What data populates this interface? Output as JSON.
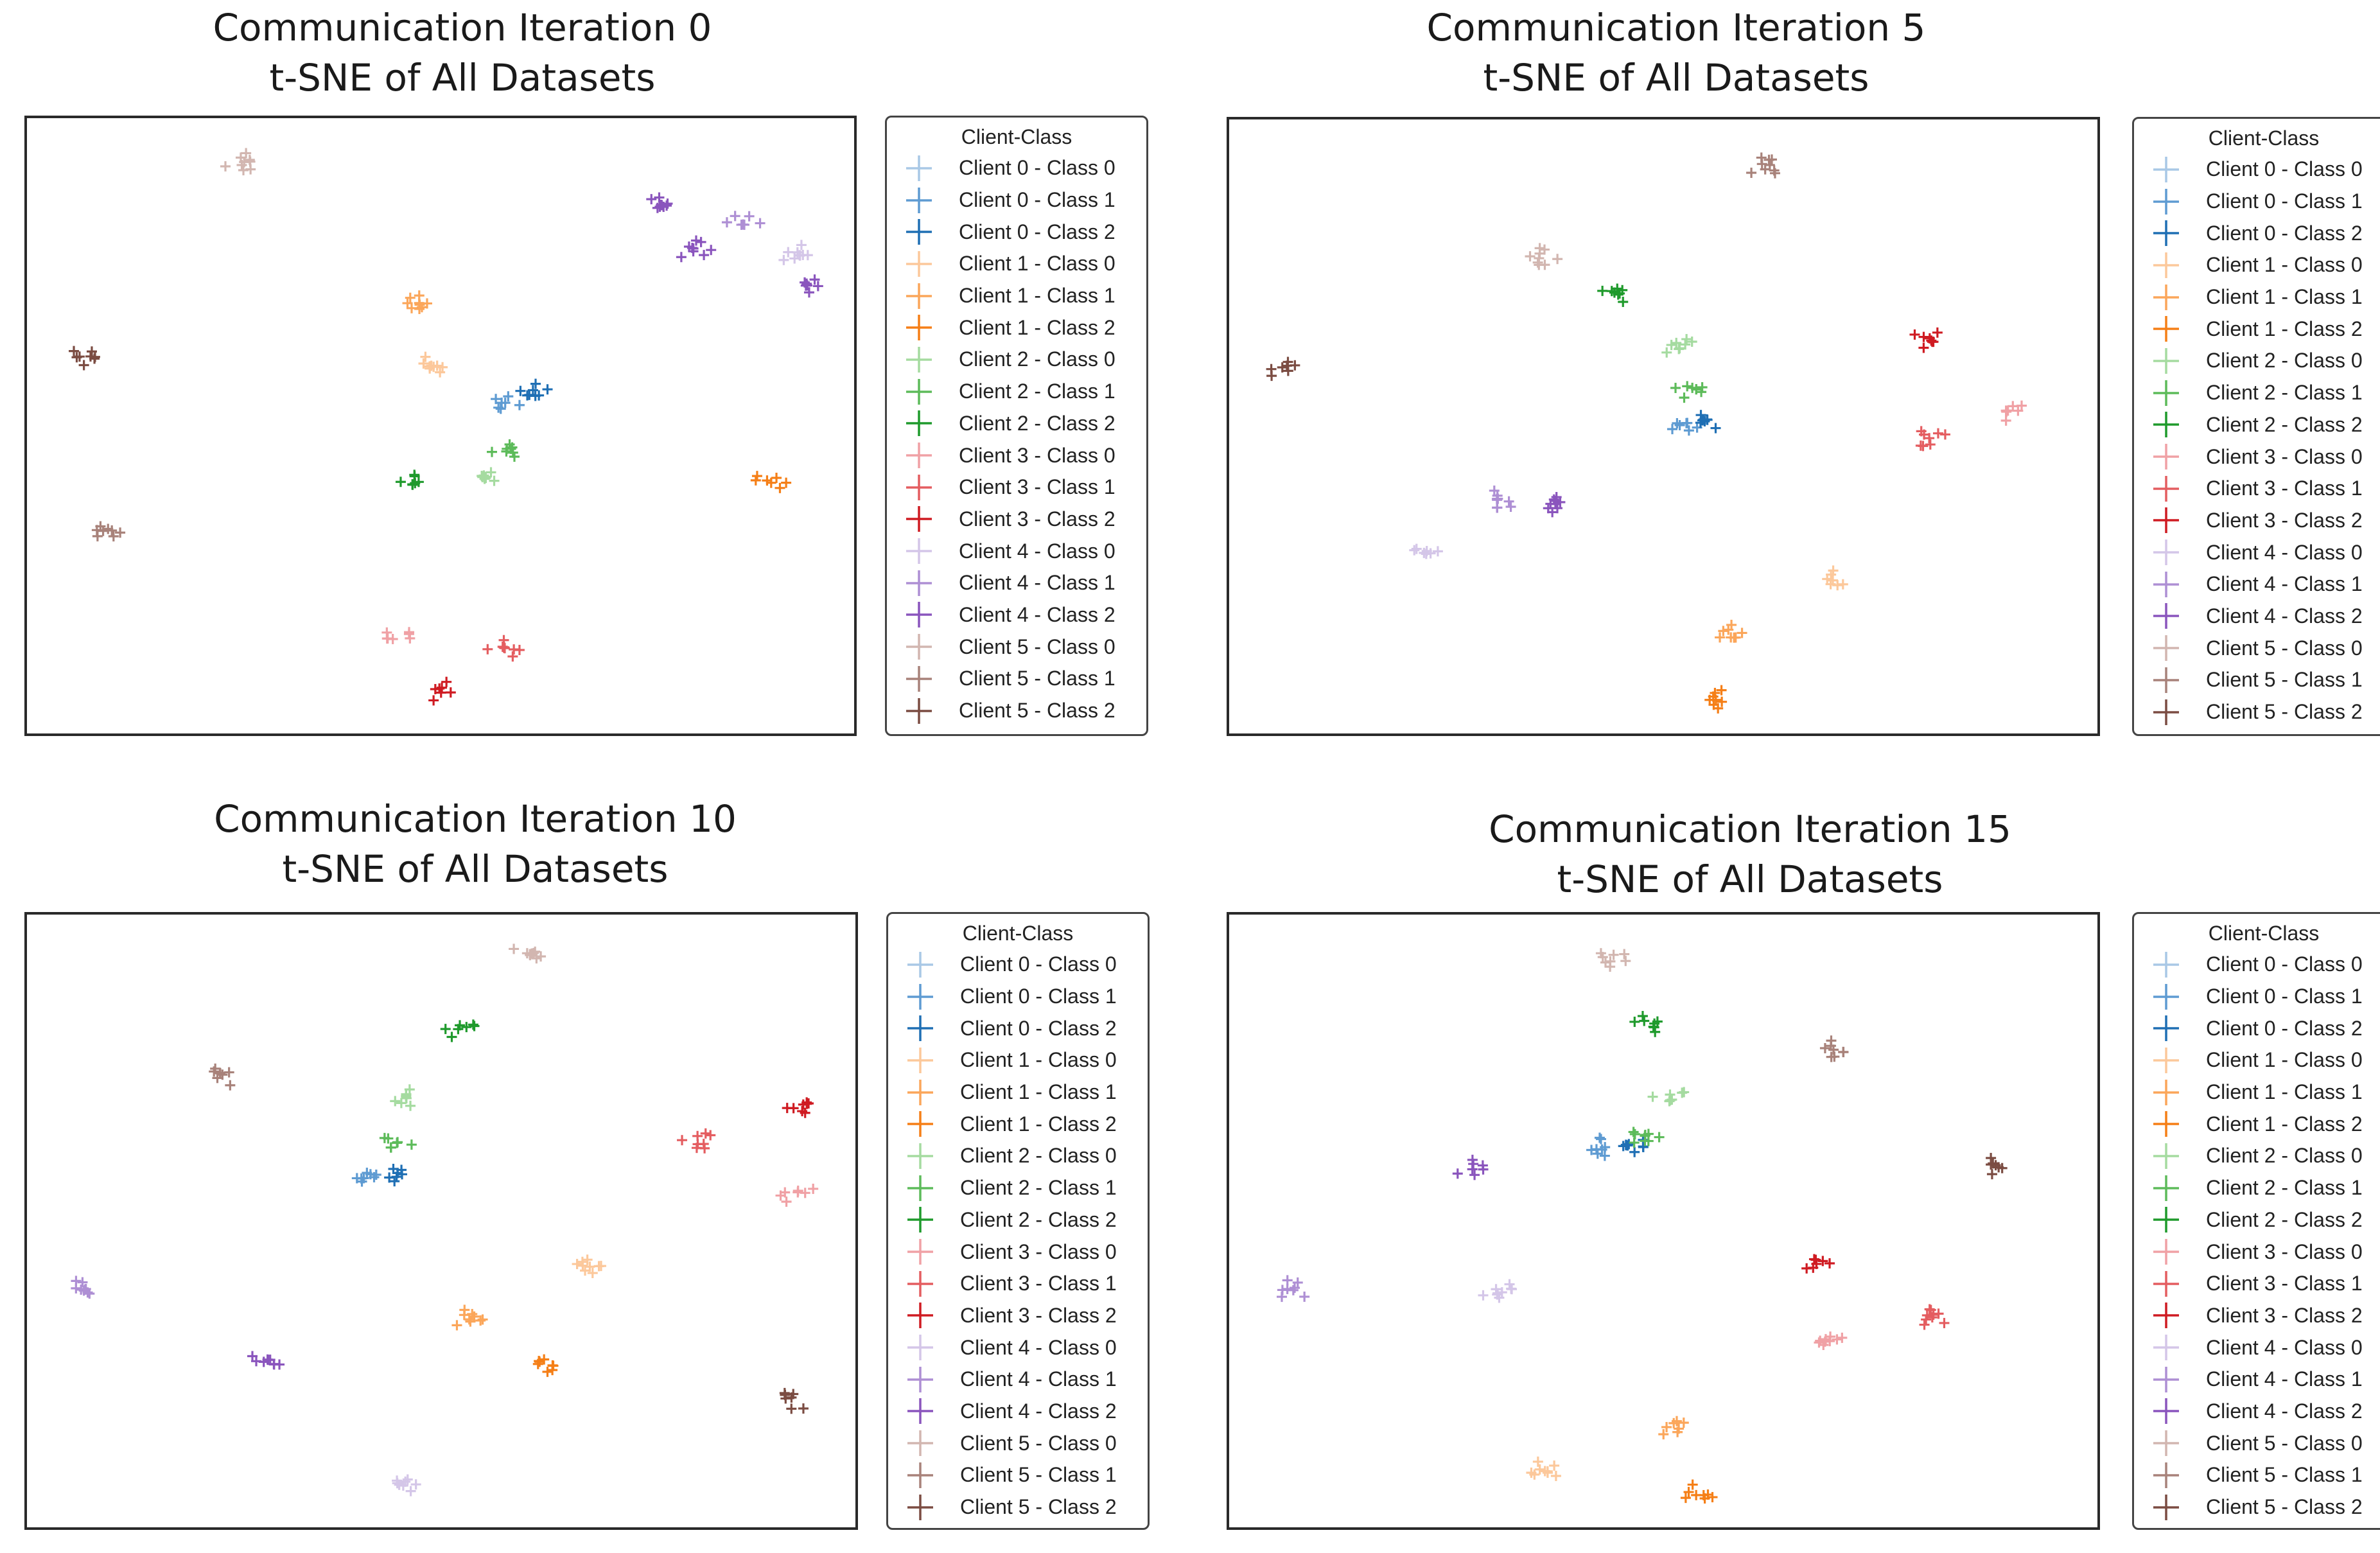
{
  "legend": {
    "title": "Client-Class",
    "items": [
      {
        "label": "Client 0 - Class 0",
        "color": "#a9c8e6"
      },
      {
        "label": "Client 0 - Class 1",
        "color": "#5e9bd2"
      },
      {
        "label": "Client 0 - Class 2",
        "color": "#1f6fb4"
      },
      {
        "label": "Client 1 - Class 0",
        "color": "#fcc89b"
      },
      {
        "label": "Client 1 - Class 1",
        "color": "#fba65a"
      },
      {
        "label": "Client 1 - Class 2",
        "color": "#f57f17"
      },
      {
        "label": "Client 2 - Class 0",
        "color": "#a5dba0"
      },
      {
        "label": "Client 2 - Class 1",
        "color": "#5dbb5a"
      },
      {
        "label": "Client 2 - Class 2",
        "color": "#1f9a2c"
      },
      {
        "label": "Client 3 - Class 0",
        "color": "#f0a1a5"
      },
      {
        "label": "Client 3 - Class 1",
        "color": "#e45d60"
      },
      {
        "label": "Client 3 - Class 2",
        "color": "#cf1b22"
      },
      {
        "label": "Client 4 - Class 0",
        "color": "#d4c6e8"
      },
      {
        "label": "Client 4 - Class 1",
        "color": "#ae8fd4"
      },
      {
        "label": "Client 4 - Class 2",
        "color": "#8a55bd"
      },
      {
        "label": "Client 5 - Class 0",
        "color": "#d2b6b0"
      },
      {
        "label": "Client 5 - Class 1",
        "color": "#a8827a"
      },
      {
        "label": "Client 5 - Class 2",
        "color": "#7b4c42"
      }
    ]
  },
  "chart_data": [
    {
      "type": "scatter",
      "title": "Communication Iteration 0\nt-SNE of All Datasets",
      "title_lines": [
        "Communication Iteration 0",
        "t-SNE of All Datasets"
      ],
      "xlim": [
        0,
        100
      ],
      "ylim": [
        0,
        100
      ],
      "axes_ticks": "none",
      "legend": "right",
      "series": [
        {
          "name": "Client 0 - Class 1",
          "centers": [
            [
              57.5,
              54.5
            ]
          ]
        },
        {
          "name": "Client 0 - Class 2",
          "centers": [
            [
              61,
              56.5
            ]
          ]
        },
        {
          "name": "Client 1 - Class 0",
          "centers": [
            [
              48.5,
              60.5
            ]
          ]
        },
        {
          "name": "Client 1 - Class 1",
          "centers": [
            [
              47,
              70.5
            ]
          ]
        },
        {
          "name": "Client 1 - Class 2",
          "centers": [
            [
              90,
              41
            ]
          ]
        },
        {
          "name": "Client 2 - Class 0",
          "centers": [
            [
              55,
              42
            ]
          ]
        },
        {
          "name": "Client 2 - Class 1",
          "centers": [
            [
              57.5,
              46.5
            ]
          ]
        },
        {
          "name": "Client 2 - Class 2",
          "centers": [
            [
              46.5,
              41
            ]
          ]
        },
        {
          "name": "Client 3 - Class 0",
          "centers": [
            [
              44,
              15.5
            ]
          ]
        },
        {
          "name": "Client 3 - Class 1",
          "centers": [
            [
              57.5,
              14
            ]
          ]
        },
        {
          "name": "Client 3 - Class 2",
          "centers": [
            [
              49.5,
              7
            ]
          ]
        },
        {
          "name": "Client 4 - Class 0",
          "centers": [
            [
              93.5,
              78.5
            ]
          ]
        },
        {
          "name": "Client 4 - Class 1",
          "centers": [
            [
              86.5,
              83.5
            ]
          ]
        },
        {
          "name": "Client 4 - Class 2",
          "centers": [
            [
              77,
              86.5
            ],
            [
              80.5,
              79.5
            ],
            [
              94.5,
              73.5
            ]
          ]
        },
        {
          "name": "Client 5 - Class 0",
          "centers": [
            [
              25.5,
              93.5
            ]
          ]
        },
        {
          "name": "Client 5 - Class 1",
          "centers": [
            [
              8.5,
              33
            ]
          ]
        },
        {
          "name": "Client 5 - Class 2",
          "centers": [
            [
              6.5,
              61.5
            ]
          ]
        }
      ]
    },
    {
      "type": "scatter",
      "title": "Communication Iteration 5\nt-SNE of All Datasets",
      "title_lines": [
        "Communication Iteration 5",
        "t-SNE of All Datasets"
      ],
      "xlim": [
        0,
        100
      ],
      "ylim": [
        0,
        100
      ],
      "axes_ticks": "none",
      "legend": "right",
      "series": [
        {
          "name": "Client 0 - Class 1",
          "centers": [
            [
              52.5,
              51
            ]
          ]
        },
        {
          "name": "Client 0 - Class 2",
          "centers": [
            [
              54.5,
              51.5
            ]
          ]
        },
        {
          "name": "Client 1 - Class 0",
          "centers": [
            [
              69.5,
              25
            ]
          ]
        },
        {
          "name": "Client 1 - Class 1",
          "centers": [
            [
              57.5,
              16.5
            ]
          ]
        },
        {
          "name": "Client 1 - Class 2",
          "centers": [
            [
              56,
              5.5
            ]
          ]
        },
        {
          "name": "Client 2 - Class 0",
          "centers": [
            [
              51.5,
              63.5
            ]
          ]
        },
        {
          "name": "Client 2 - Class 1",
          "centers": [
            [
              52.5,
              57
            ]
          ]
        },
        {
          "name": "Client 2 - Class 2",
          "centers": [
            [
              44,
              72.5
            ]
          ]
        },
        {
          "name": "Client 3 - Class 0",
          "centers": [
            [
              89.5,
              53
            ]
          ]
        },
        {
          "name": "Client 3 - Class 1",
          "centers": [
            [
              80.5,
              48.5
            ]
          ]
        },
        {
          "name": "Client 3 - Class 2",
          "centers": [
            [
              80.5,
              64.5
            ]
          ]
        },
        {
          "name": "Client 4 - Class 0",
          "centers": [
            [
              22,
              29.5
            ]
          ]
        },
        {
          "name": "Client 4 - Class 1",
          "centers": [
            [
              30.5,
              38.5
            ]
          ]
        },
        {
          "name": "Client 4 - Class 2",
          "centers": [
            [
              37,
              38
            ]
          ]
        },
        {
          "name": "Client 5 - Class 0",
          "centers": [
            [
              35.5,
              78.5
            ]
          ]
        },
        {
          "name": "Client 5 - Class 1",
          "centers": [
            [
              61,
              93
            ]
          ]
        },
        {
          "name": "Client 5 - Class 2",
          "centers": [
            [
              6,
              59.5
            ]
          ]
        }
      ]
    },
    {
      "type": "scatter",
      "title": "Communication Iteration 10\nt-SNE of All Datasets",
      "title_lines": [
        "Communication Iteration 10",
        "t-SNE of All Datasets"
      ],
      "xlim": [
        0,
        100
      ],
      "ylim": [
        0,
        100
      ],
      "axes_ticks": "none",
      "legend": "right",
      "series": [
        {
          "name": "Client 0 - Class 1",
          "centers": [
            [
              41.5,
              58
            ]
          ]
        },
        {
          "name": "Client 0 - Class 2",
          "centers": [
            [
              44.5,
              58
            ]
          ]
        },
        {
          "name": "Client 1 - Class 0",
          "centers": [
            [
              67,
              43
            ]
          ]
        },
        {
          "name": "Client 1 - Class 1",
          "centers": [
            [
              53,
              34.5
            ]
          ]
        },
        {
          "name": "Client 1 - Class 2",
          "centers": [
            [
              63,
              26.5
            ]
          ]
        },
        {
          "name": "Client 2 - Class 0",
          "centers": [
            [
              45.5,
              71
            ]
          ]
        },
        {
          "name": "Client 2 - Class 1",
          "centers": [
            [
              44,
              63.5
            ]
          ]
        },
        {
          "name": "Client 2 - Class 2",
          "centers": [
            [
              52,
              82.5
            ]
          ]
        },
        {
          "name": "Client 3 - Class 0",
          "centers": [
            [
              93,
              55
            ]
          ]
        },
        {
          "name": "Client 3 - Class 1",
          "centers": [
            [
              81,
              63.5
            ]
          ]
        },
        {
          "name": "Client 3 - Class 2",
          "centers": [
            [
              94,
              69.5
            ]
          ]
        },
        {
          "name": "Client 4 - Class 0",
          "centers": [
            [
              44.5,
              6.5
            ]
          ]
        },
        {
          "name": "Client 4 - Class 1",
          "centers": [
            [
              6.5,
              39
            ]
          ]
        },
        {
          "name": "Client 4 - Class 2",
          "centers": [
            [
              28.5,
              27.5
            ]
          ]
        },
        {
          "name": "Client 5 - Class 0",
          "centers": [
            [
              60.5,
              94.5
            ]
          ]
        },
        {
          "name": "Client 5 - Class 1",
          "centers": [
            [
              23,
              74.5
            ]
          ]
        },
        {
          "name": "Client 5 - Class 2",
          "centers": [
            [
              93,
              21
            ]
          ]
        }
      ]
    },
    {
      "type": "scatter",
      "title": "Communication Iteration 15\nt-SNE of All Datasets",
      "title_lines": [
        "Communication Iteration 15",
        "t-SNE of All Datasets"
      ],
      "xlim": [
        0,
        100
      ],
      "ylim": [
        0,
        100
      ],
      "axes_ticks": "none",
      "legend": "right",
      "series": [
        {
          "name": "Client 0 - Class 1",
          "centers": [
            [
              43,
              62.5
            ]
          ]
        },
        {
          "name": "Client 0 - Class 2",
          "centers": [
            [
              45.5,
              63
            ]
          ]
        },
        {
          "name": "Client 1 - Class 0",
          "centers": [
            [
              36,
              9
            ]
          ]
        },
        {
          "name": "Client 1 - Class 1",
          "centers": [
            [
              51,
              16
            ]
          ]
        },
        {
          "name": "Client 1 - Class 2",
          "centers": [
            [
              53.5,
              5.5
            ]
          ]
        },
        {
          "name": "Client 2 - Class 0",
          "centers": [
            [
              50.5,
              70.5
            ]
          ]
        },
        {
          "name": "Client 2 - Class 1",
          "centers": [
            [
              47.5,
              64.5
            ]
          ]
        },
        {
          "name": "Client 2 - Class 2",
          "centers": [
            [
              47.5,
              82.5
            ]
          ]
        },
        {
          "name": "Client 3 - Class 0",
          "centers": [
            [
              68.5,
              30.5
            ]
          ]
        },
        {
          "name": "Client 3 - Class 1",
          "centers": [
            [
              81,
              34.5
            ]
          ]
        },
        {
          "name": "Client 3 - Class 2",
          "centers": [
            [
              67.5,
              43.5
            ]
          ]
        },
        {
          "name": "Client 4 - Class 0",
          "centers": [
            [
              30.5,
              38.5
            ]
          ]
        },
        {
          "name": "Client 4 - Class 1",
          "centers": [
            [
              6.5,
              39
            ]
          ]
        },
        {
          "name": "Client 4 - Class 2",
          "centers": [
            [
              27.5,
              59
            ]
          ]
        },
        {
          "name": "Client 5 - Class 0",
          "centers": [
            [
              44,
              93.5
            ]
          ]
        },
        {
          "name": "Client 5 - Class 1",
          "centers": [
            [
              69.5,
              78.5
            ]
          ]
        },
        {
          "name": "Client 5 - Class 2",
          "centers": [
            [
              88.5,
              59.5
            ]
          ]
        }
      ]
    }
  ]
}
